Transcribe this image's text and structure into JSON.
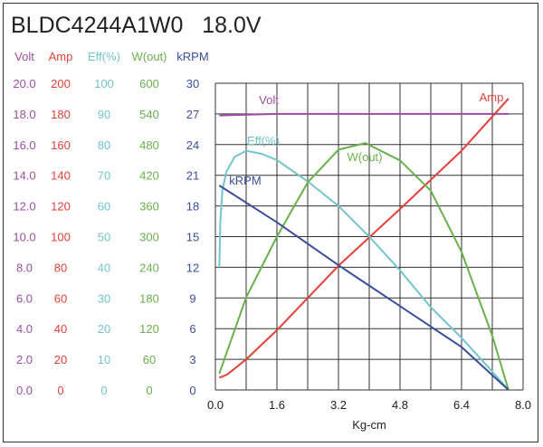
{
  "chart_data": {
    "type": "line",
    "title": "BLDC4244A1W0   18.0V",
    "xlabel": "Kg-cm",
    "xlim": [
      0,
      8.0
    ],
    "x_ticks": [
      "0.0",
      "1.6",
      "3.2",
      "4.8",
      "6.4",
      "8.0"
    ],
    "grid": true,
    "axes": [
      {
        "name": "Volt",
        "color": "#9b4fa0",
        "range": [
          0,
          20
        ],
        "ticks": [
          "0.0",
          "2.0",
          "4.0",
          "6.0",
          "8.0",
          "10.0",
          "12.0",
          "14.0",
          "16.0",
          "18.0",
          "20.0"
        ]
      },
      {
        "name": "Amp",
        "color": "#e0413a",
        "range": [
          0,
          200
        ],
        "ticks": [
          "0",
          "20",
          "40",
          "60",
          "80",
          "100",
          "120",
          "140",
          "160",
          "180",
          "200"
        ]
      },
      {
        "name": "Eff(%)",
        "color": "#72c5cb",
        "range": [
          0,
          100
        ],
        "ticks": [
          "0",
          "10",
          "20",
          "30",
          "40",
          "50",
          "60",
          "70",
          "80",
          "90",
          "100"
        ]
      },
      {
        "name": "W(out)",
        "color": "#6ab04c",
        "range": [
          0,
          600
        ],
        "ticks": [
          "0",
          "60",
          "120",
          "180",
          "240",
          "300",
          "360",
          "420",
          "480",
          "540",
          "600"
        ]
      },
      {
        "name": "kRPM",
        "color": "#3a4f9a",
        "range": [
          0,
          30
        ],
        "ticks": [
          "0",
          "3",
          "6",
          "9",
          "12",
          "15",
          "18",
          "21",
          "24",
          "27",
          "30"
        ]
      }
    ],
    "series": [
      {
        "name": "Volt",
        "axis": 0,
        "label": "Volt",
        "x": [
          0.1,
          1.6,
          3.2,
          4.8,
          6.4,
          7.62
        ],
        "y": [
          17.9,
          18.0,
          18.0,
          18.0,
          18.0,
          18.0
        ]
      },
      {
        "name": "Amp",
        "axis": 1,
        "label": "Amp",
        "x": [
          0.1,
          0.3,
          0.8,
          1.6,
          3.2,
          4.8,
          6.4,
          7.62
        ],
        "y": [
          8,
          10,
          20,
          39,
          81,
          118,
          156,
          190
        ]
      },
      {
        "name": "Eff(%)",
        "axis": 2,
        "label": "Eff(%)",
        "x": [
          0.1,
          0.13,
          0.18,
          0.28,
          0.5,
          0.8,
          1.2,
          1.6,
          2.4,
          3.2,
          4.0,
          4.8,
          5.6,
          6.4,
          7.2,
          7.62
        ],
        "y": [
          40,
          55,
          65,
          71,
          76,
          78,
          77,
          75,
          68,
          60,
          50,
          39,
          27,
          17,
          6,
          0
        ]
      },
      {
        "name": "W(out)",
        "axis": 3,
        "label": "W(out)",
        "x": [
          0.1,
          0.8,
          1.6,
          2.4,
          3.2,
          3.9,
          4.8,
          5.6,
          6.4,
          7.2,
          7.62
        ],
        "y": [
          32,
          181,
          300,
          406,
          470,
          483,
          449,
          390,
          270,
          106,
          0
        ]
      },
      {
        "name": "kRPM",
        "axis": 4,
        "label": "kRPM",
        "x": [
          0.1,
          1.6,
          3.2,
          4.8,
          6.4,
          7.62
        ],
        "y": [
          20.0,
          16.4,
          12.2,
          8.2,
          4.2,
          0
        ]
      }
    ]
  }
}
